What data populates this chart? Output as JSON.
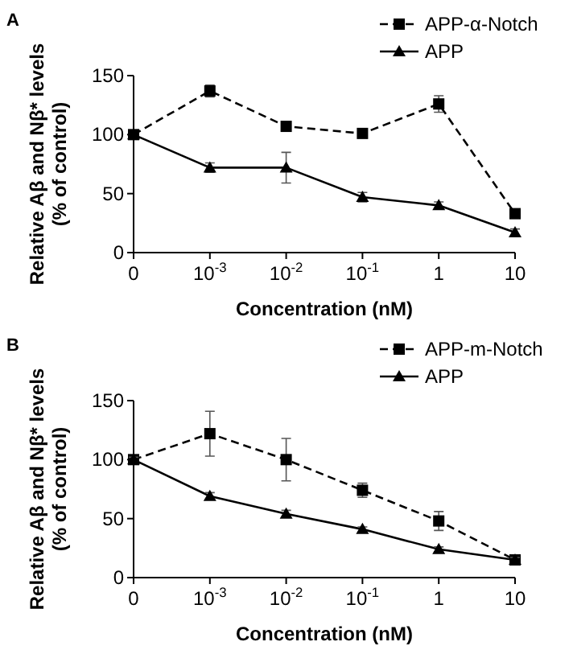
{
  "chart_data": [
    {
      "type": "line",
      "title": "A",
      "categories": [
        "0",
        "10$^{-3}$",
        "10$^{-2}$",
        "10$^{-1}$",
        "1",
        "10"
      ],
      "xlabel": "Concentration (nM)",
      "ylabel": "Relative Aβ and Nβ* levels\n(% of control)",
      "ylim": [
        0,
        150
      ],
      "yticks": [
        0,
        50,
        100,
        150
      ],
      "legend": "top right",
      "grid": false,
      "series": [
        {
          "name": "APP-α-Notch",
          "color": "#000000",
          "marker": "square",
          "line_style": "dashed",
          "values": [
            100,
            137,
            107,
            101,
            126,
            33
          ],
          "errors": [
            null,
            5,
            null,
            null,
            7,
            null
          ]
        },
        {
          "name": "APP",
          "color": "#000000",
          "marker": "triangle",
          "line_style": "solid",
          "values": [
            100,
            72,
            72,
            47,
            40,
            17
          ],
          "errors": [
            null,
            4,
            13,
            4,
            3,
            3
          ]
        }
      ]
    },
    {
      "type": "line",
      "title": "B",
      "categories": [
        "0",
        "10$^{-3}$",
        "10$^{-2}$",
        "10$^{-1}$",
        "1",
        "10"
      ],
      "xlabel": "Concentration (nM)",
      "ylabel": "Relative Aβ and Nβ* levels\n(% of control)",
      "ylim": [
        0,
        150
      ],
      "yticks": [
        0,
        50,
        100,
        150
      ],
      "legend": "top right",
      "grid": false,
      "series": [
        {
          "name": "APP-m-Notch",
          "color": "#000000",
          "marker": "square",
          "line_style": "dashed",
          "values": [
            100,
            122,
            100,
            74,
            48,
            15
          ],
          "errors": [
            2,
            19,
            18,
            6,
            8,
            3
          ]
        },
        {
          "name": "APP",
          "color": "#000000",
          "marker": "triangle",
          "line_style": "solid",
          "values": [
            100,
            69,
            54,
            41,
            24,
            15
          ],
          "errors": [
            2,
            3,
            3,
            2,
            2,
            2
          ]
        }
      ]
    }
  ]
}
